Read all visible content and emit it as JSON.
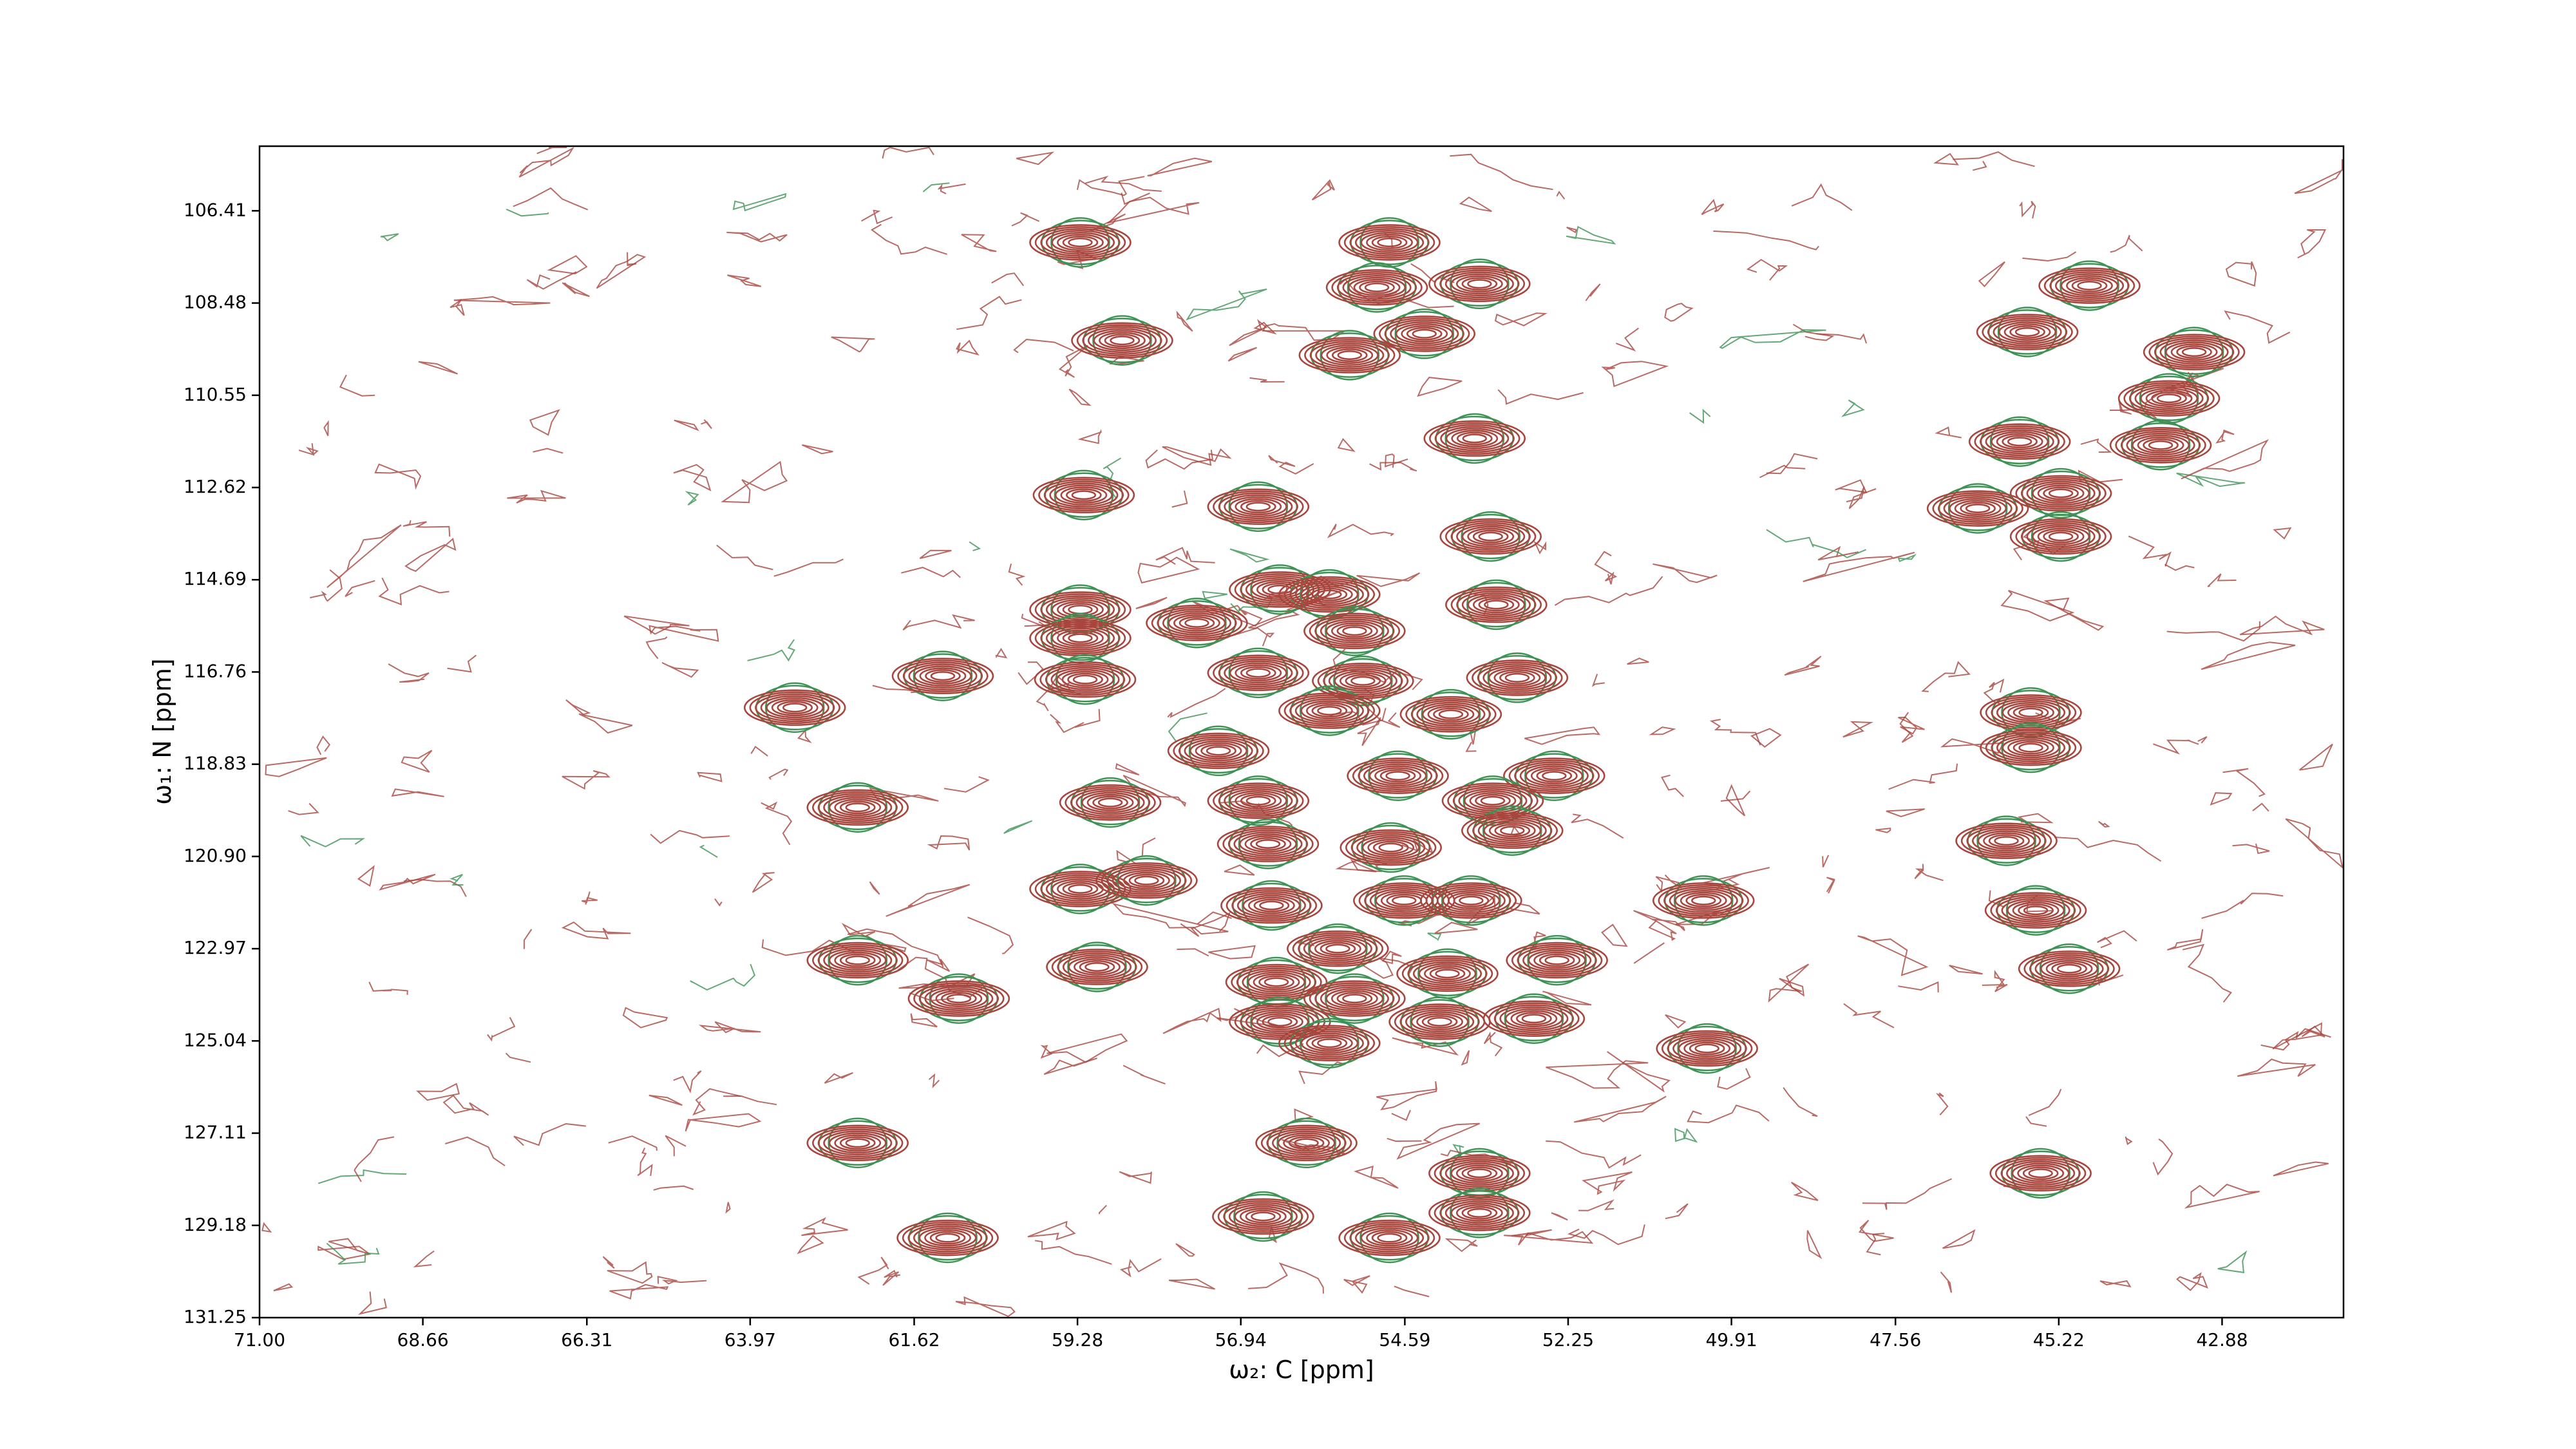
{
  "chart_data": {
    "type": "contour",
    "xlabel": "ω₂: C [ppm]",
    "ylabel": "ω₁: N [ppm]",
    "xlim": [
      71.0,
      41.14
    ],
    "ylim": [
      131.25,
      104.96
    ],
    "xticks": [
      {
        "value": 71.0,
        "label": "71.00"
      },
      68.66,
      66.31,
      63.97,
      61.62,
      59.28,
      56.94,
      54.59,
      52.25,
      49.91,
      47.56,
      45.22,
      42.88
    ],
    "yticks": [
      106.41,
      108.48,
      110.55,
      112.62,
      114.69,
      116.76,
      118.83,
      {
        "value": 120.9,
        "label": "120.90"
      },
      122.97,
      125.04,
      127.11,
      129.18,
      131.25
    ],
    "color": "#a8453d",
    "negative_color": "#3f9255",
    "x": [
      59.24,
      58.64,
      54.81,
      54.99,
      53.52,
      54.31,
      55.38,
      53.59,
      44.78,
      45.67,
      43.28,
      43.64,
      45.78,
      43.76,
      45.19,
      46.38,
      45.19,
      59.19,
      56.69,
      53.36,
      59.24,
      59.24,
      56.38,
      55.67,
      57.57,
      55.31,
      53.28,
      61.21,
      63.33,
      59.17,
      56.69,
      55.19,
      52.98,
      55.67,
      53.93,
      45.62,
      45.62,
      57.26,
      54.69,
      52.45,
      62.43,
      58.81,
      56.69,
      53.33,
      53.05,
      56.55,
      54.79,
      45.97,
      59.24,
      58.29,
      56.5,
      54.6,
      53.64,
      50.31,
      45.55,
      62.43,
      59.0,
      55.55,
      53.98,
      52.41,
      45.07,
      60.98,
      56.43,
      55.31,
      56.38,
      55.67,
      54.09,
      52.74,
      50.26,
      62.43,
      56.0,
      53.52,
      53.52,
      45.48,
      56.62,
      61.14,
      54.81
    ],
    "y": [
      107.12,
      109.32,
      107.12,
      108.13,
      108.05,
      109.17,
      109.65,
      111.52,
      108.09,
      109.13,
      109.58,
      110.62,
      111.59,
      111.67,
      112.75,
      113.09,
      113.72,
      112.79,
      113.05,
      113.72,
      115.36,
      116.0,
      114.91,
      115.02,
      115.66,
      115.84,
      115.25,
      116.85,
      117.56,
      116.93,
      116.78,
      116.96,
      116.89,
      117.63,
      117.71,
      117.67,
      118.46,
      118.53,
      119.09,
      119.09,
      119.8,
      119.69,
      119.65,
      119.65,
      120.32,
      120.62,
      120.7,
      120.55,
      121.63,
      121.44,
      122.0,
      121.89,
      121.89,
      121.89,
      122.11,
      123.23,
      123.38,
      122.97,
      123.53,
      123.23,
      123.42,
      124.09,
      123.72,
      124.09,
      124.61,
      125.09,
      124.61,
      124.54,
      125.21,
      127.33,
      127.33,
      128.01,
      128.9,
      128.01,
      128.98,
      129.46,
      129.46
    ]
  }
}
